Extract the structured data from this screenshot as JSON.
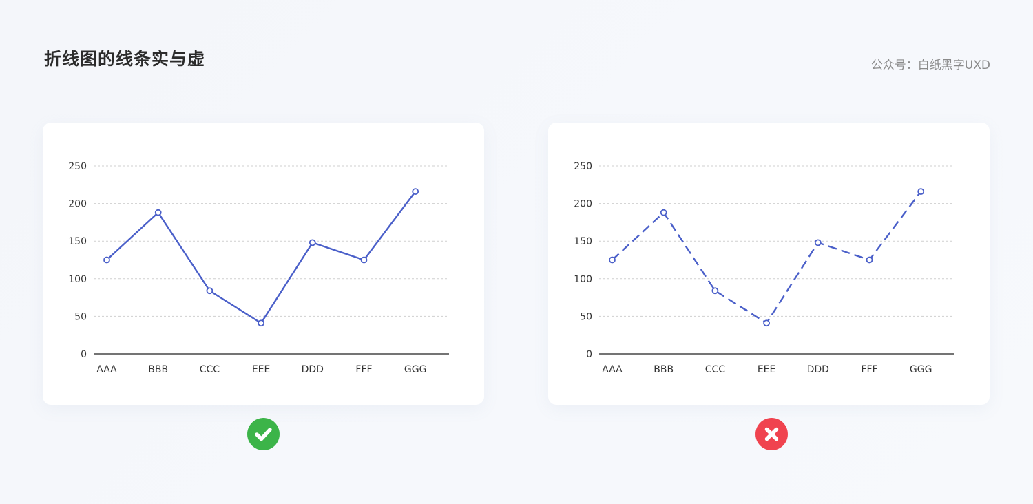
{
  "header": {
    "title": "折线图的线条实与虚",
    "credit": "公众号：白纸黑字UXD"
  },
  "chart_data": [
    {
      "type": "line",
      "line_style": "solid",
      "verdict": "correct",
      "categories": [
        "AAA",
        "BBB",
        "CCC",
        "EEE",
        "DDD",
        "FFF",
        "GGG"
      ],
      "values": [
        125,
        188,
        84,
        41,
        148,
        125,
        216
      ],
      "yticks": [
        "0",
        "50",
        "100",
        "150",
        "200",
        "250"
      ],
      "ylim": [
        0,
        250
      ],
      "grid": true,
      "color": "#4a5fc9"
    },
    {
      "type": "line",
      "line_style": "dashed",
      "verdict": "incorrect",
      "categories": [
        "AAA",
        "BBB",
        "CCC",
        "EEE",
        "DDD",
        "FFF",
        "GGG"
      ],
      "values": [
        125,
        188,
        84,
        41,
        148,
        125,
        216
      ],
      "yticks": [
        "0",
        "50",
        "100",
        "150",
        "200",
        "250"
      ],
      "ylim": [
        0,
        250
      ],
      "grid": true,
      "color": "#4a5fc9"
    }
  ],
  "badges": {
    "ok_color": "#3cb449",
    "ok_icon": "check-icon",
    "bad_color": "#f0434f",
    "bad_icon": "cross-icon"
  }
}
